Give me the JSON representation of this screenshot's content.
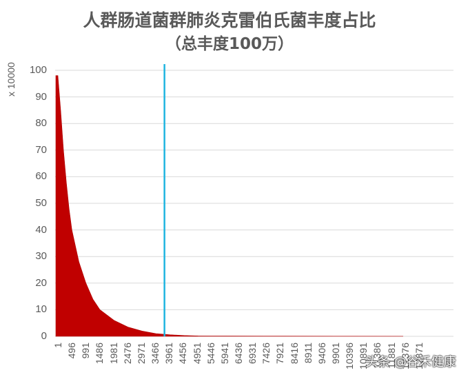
{
  "chart_data": {
    "type": "bar",
    "title": "人群肠道菌群肺炎克雷伯氏菌丰度占比",
    "subtitle": "（总丰度100万）",
    "xlabel": "",
    "ylabel": "x 10000",
    "ylim": [
      0,
      100
    ],
    "yticks": [
      "0",
      "10",
      "20",
      "30",
      "40",
      "50",
      "60",
      "70",
      "80",
      "90",
      "100"
    ],
    "xticks": [
      "1",
      "496",
      "991",
      "1486",
      "1981",
      "2476",
      "2971",
      "3466",
      "3961",
      "4456",
      "4951",
      "5446",
      "5941",
      "6436",
      "6931",
      "7426",
      "7921",
      "8416",
      "8911",
      "9406",
      "9901",
      "10396",
      "10891",
      "11386",
      "11881",
      "12376",
      "12871"
    ],
    "grid": true,
    "legend": null,
    "series": [
      {
        "name": "肺炎克雷伯氏菌丰度",
        "color": "#C00000",
        "x": [
          1,
          100,
          200,
          300,
          400,
          500,
          750,
          1000,
          1250,
          1500,
          2000,
          2500,
          3000,
          3500,
          4000,
          4500,
          5000,
          6000,
          8000,
          10000,
          12300
        ],
        "values": [
          98,
          85,
          70,
          58,
          48,
          40,
          28,
          20,
          14,
          10,
          6,
          3.5,
          2,
          1,
          0.6,
          0.3,
          0.15,
          0.1,
          0.08,
          0.05,
          0.03
        ]
      }
    ],
    "annotations": [
      {
        "type": "vertical-line",
        "x": 3800,
        "color": "#1FB5E0"
      }
    ]
  },
  "watermark": "头条 @谷禾健康",
  "colors": {
    "bar": "#C00000",
    "marker_line": "#1FB5E0",
    "grid": "#D9D9D9",
    "text": "#595959"
  }
}
